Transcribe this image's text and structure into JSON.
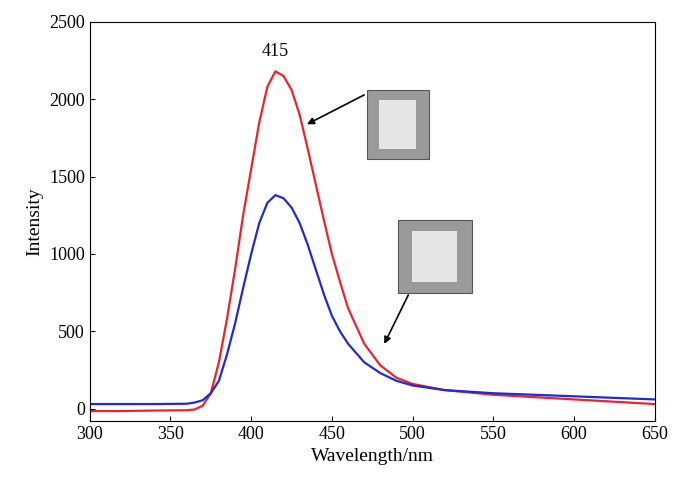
{
  "chart_data": {
    "type": "line",
    "x_label": "Wavelength/nm",
    "y_label": "Intensity",
    "x": [
      300,
      320,
      340,
      360,
      365,
      370,
      375,
      380,
      385,
      390,
      395,
      400,
      405,
      410,
      415,
      420,
      425,
      430,
      435,
      440,
      445,
      450,
      455,
      460,
      470,
      480,
      490,
      500,
      520,
      550,
      600,
      650
    ],
    "series": [
      {
        "color": "#e8252a",
        "values": [
          -15,
          -15,
          -12,
          -10,
          -5,
          20,
          100,
          300,
          580,
          900,
          1250,
          1550,
          1850,
          2080,
          2180,
          2150,
          2060,
          1900,
          1680,
          1450,
          1220,
          1000,
          820,
          650,
          420,
          280,
          200,
          160,
          120,
          90,
          60,
          30
        ]
      },
      {
        "color": "#1f2bd0",
        "values": [
          30,
          30,
          30,
          32,
          40,
          55,
          100,
          180,
          350,
          550,
          780,
          1000,
          1200,
          1330,
          1380,
          1360,
          1300,
          1200,
          1060,
          900,
          740,
          600,
          500,
          420,
          300,
          230,
          180,
          150,
          120,
          100,
          80,
          60
        ]
      }
    ],
    "annotations": [
      {
        "text": "415",
        "x": 415,
        "y": 2180
      }
    ],
    "xlim": [
      300,
      650
    ],
    "xticks": [
      300,
      350,
      400,
      450,
      500,
      550,
      600,
      650
    ],
    "ylim": [
      -80,
      2500
    ],
    "yticks": [
      0,
      500,
      1000,
      1500,
      2000,
      2500
    ],
    "grid": false
  }
}
